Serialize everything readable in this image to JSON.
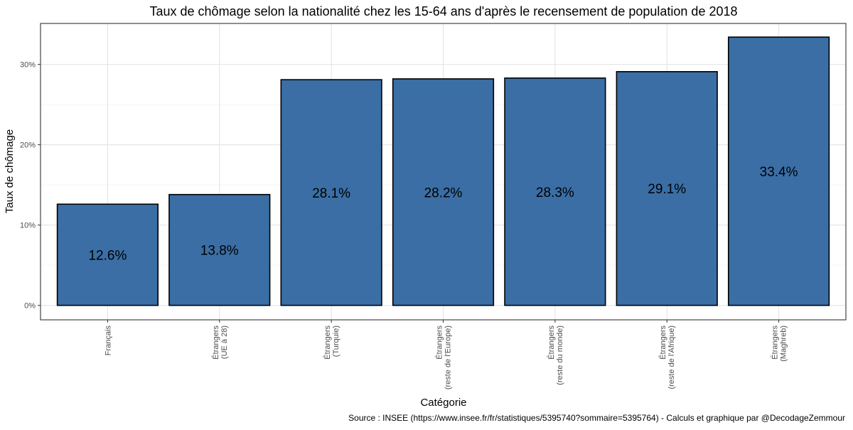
{
  "chart_data": {
    "type": "bar",
    "title": "Taux de chômage selon la nationalité chez les 15-64 ans d'après le recensement de population de 2018",
    "xlabel": "Catégorie",
    "ylabel": "Taux de chômage",
    "caption": "Source : INSEE (https://www.insee.fr/fr/statistiques/5395740?sommaire=5395764) - Calculs et graphique par @DecodageZemmour",
    "categories": [
      [
        "Français"
      ],
      [
        "Étrangers",
        "(UE à 28)"
      ],
      [
        "Étrangers",
        "(Turquie)"
      ],
      [
        "Étrangers",
        "(reste de l'Europe)"
      ],
      [
        "Étrangers",
        "(reste du monde)"
      ],
      [
        "Étrangers",
        "(reste de l'Afrique)"
      ],
      [
        "Étrangers",
        "(Maghreb)"
      ]
    ],
    "values": [
      12.6,
      13.8,
      28.1,
      28.2,
      28.3,
      29.1,
      33.4
    ],
    "value_labels": [
      "12.6%",
      "13.8%",
      "28.1%",
      "28.2%",
      "28.3%",
      "29.1%",
      "33.4%"
    ],
    "y_ticks": [
      0,
      10,
      20,
      30
    ],
    "y_tick_labels": [
      "0%",
      "10%",
      "20%",
      "30%"
    ],
    "ylim": [
      -1.8,
      35.1
    ],
    "grid": true,
    "legend": "none",
    "colors": {
      "bar_fill": "#3a6ea5",
      "bar_stroke": "#000000",
      "grid_major": "#e3e3e3",
      "grid_minor": "#f1f1f1",
      "panel_border": "#333333"
    }
  }
}
